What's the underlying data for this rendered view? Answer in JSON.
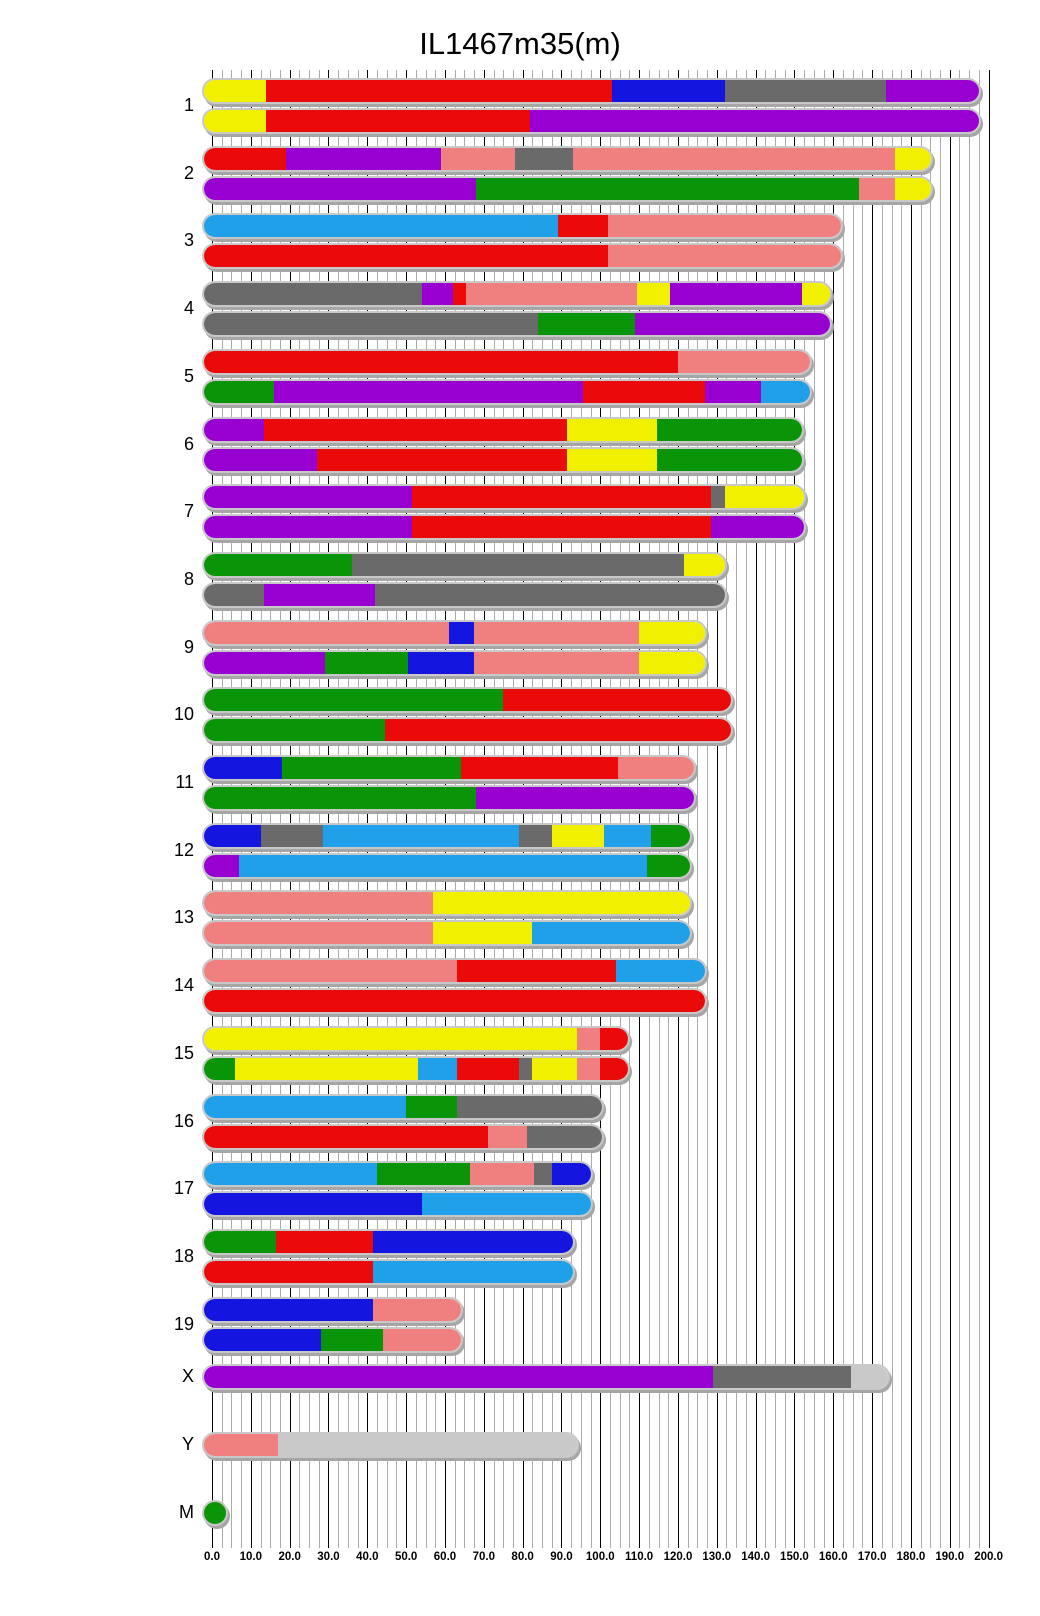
{
  "title": "IL1467m35(m)",
  "axis": {
    "min": 0,
    "max": 200,
    "minor_step": 2.5,
    "major_step": 10,
    "tick_labels": [
      "0.0",
      "10.0",
      "20.0",
      "30.0",
      "40.0",
      "50.0",
      "60.0",
      "70.0",
      "80.0",
      "90.0",
      "100.0",
      "110.0",
      "120.0",
      "130.0",
      "140.0",
      "150.0",
      "160.0",
      "170.0",
      "180.0",
      "190.0",
      "200.0"
    ]
  },
  "colors": {
    "red": "#ea0a0a",
    "yellow": "#f0f000",
    "blue": "#1515e0",
    "lightblue": "#1fa0e8",
    "purple": "#9800d2",
    "gray": "#6a6a6a",
    "lightgray": "#c9c9c9",
    "pink": "#f08080",
    "green": "#0a9408",
    "minor_gridline": "#ababab",
    "major_gridline": "#000000"
  },
  "chart_data": {
    "type": "chromosome-ideogram",
    "title": "IL1467m35(m)",
    "x_unit": "Mb",
    "x_range": [
      0,
      200
    ],
    "rows": [
      {
        "label": "1",
        "length": 195.5,
        "bars": [
          [
            [
              "yellow",
              0,
              14
            ],
            [
              "red",
              14,
              103
            ],
            [
              "blue",
              103,
              132
            ],
            [
              "gray",
              132,
              173.5
            ],
            [
              "purple",
              173.5,
              195.5
            ]
          ],
          [
            [
              "yellow",
              0,
              14
            ],
            [
              "red",
              14,
              82
            ],
            [
              "purple",
              82,
              195.5
            ]
          ]
        ]
      },
      {
        "label": "2",
        "length": 183,
        "bars": [
          [
            [
              "red",
              0,
              19
            ],
            [
              "purple",
              19,
              59
            ],
            [
              "pink",
              59,
              78
            ],
            [
              "gray",
              78,
              93
            ],
            [
              "pink",
              93,
              176
            ],
            [
              "yellow",
              176,
              183
            ]
          ],
          [
            [
              "purple",
              0,
              68
            ],
            [
              "green",
              68,
              166.5
            ],
            [
              "pink",
              166.5,
              176
            ],
            [
              "yellow",
              176,
              183
            ]
          ]
        ]
      },
      {
        "label": "3",
        "length": 160,
        "bars": [
          [
            [
              "lightblue",
              0,
              89
            ],
            [
              "red",
              89,
              102
            ],
            [
              "pink",
              102,
              160
            ]
          ],
          [
            [
              "red",
              0,
              102
            ],
            [
              "pink",
              102,
              160
            ]
          ]
        ]
      },
      {
        "label": "4",
        "length": 157,
        "bars": [
          [
            [
              "gray",
              0,
              54
            ],
            [
              "purple",
              54,
              62
            ],
            [
              "red",
              62,
              65.5
            ],
            [
              "pink",
              65.5,
              109.5
            ],
            [
              "yellow",
              109.5,
              118
            ],
            [
              "purple",
              118,
              152
            ],
            [
              "yellow",
              152,
              157
            ]
          ],
          [
            [
              "gray",
              0,
              84
            ],
            [
              "green",
              84,
              109
            ],
            [
              "purple",
              109,
              157
            ]
          ]
        ]
      },
      {
        "label": "5",
        "length": 152,
        "bars": [
          [
            [
              "red",
              0,
              120
            ],
            [
              "pink",
              120,
              152
            ]
          ],
          [
            [
              "green",
              0,
              16
            ],
            [
              "purple",
              16,
              95.5
            ],
            [
              "red",
              95.5,
              127
            ],
            [
              "purple",
              127,
              141.5
            ],
            [
              "lightblue",
              141.5,
              152
            ]
          ]
        ]
      },
      {
        "label": "6",
        "length": 150,
        "bars": [
          [
            [
              "purple",
              0,
              13.5
            ],
            [
              "red",
              13.5,
              91.5
            ],
            [
              "yellow",
              91.5,
              114.5
            ],
            [
              "green",
              114.5,
              150
            ]
          ],
          [
            [
              "purple",
              0,
              27
            ],
            [
              "red",
              27,
              91.5
            ],
            [
              "yellow",
              91.5,
              114.5
            ],
            [
              "green",
              114.5,
              150
            ]
          ]
        ]
      },
      {
        "label": "7",
        "length": 150.5,
        "bars": [
          [
            [
              "purple",
              0,
              51.5
            ],
            [
              "red",
              51.5,
              128.5
            ],
            [
              "gray",
              128.5,
              132
            ],
            [
              "yellow",
              132,
              150.5
            ]
          ],
          [
            [
              "purple",
              0,
              51.5
            ],
            [
              "red",
              51.5,
              128.5
            ],
            [
              "purple",
              128.5,
              150.5
            ]
          ]
        ]
      },
      {
        "label": "8",
        "length": 130,
        "bars": [
          [
            [
              "green",
              0,
              36
            ],
            [
              "gray",
              36,
              121.5
            ],
            [
              "yellow",
              121.5,
              130
            ]
          ],
          [
            [
              "gray",
              0,
              13.5
            ],
            [
              "purple",
              13.5,
              42
            ],
            [
              "gray",
              42,
              130
            ]
          ]
        ]
      },
      {
        "label": "9",
        "length": 125,
        "bars": [
          [
            [
              "pink",
              0,
              61
            ],
            [
              "blue",
              61,
              67.5
            ],
            [
              "pink",
              67.5,
              110
            ],
            [
              "yellow",
              110,
              125
            ]
          ],
          [
            [
              "purple",
              0,
              29
            ],
            [
              "green",
              29,
              50.5
            ],
            [
              "blue",
              50.5,
              67.5
            ],
            [
              "pink",
              67.5,
              110
            ],
            [
              "yellow",
              110,
              125
            ]
          ]
        ]
      },
      {
        "label": "10",
        "length": 131.5,
        "bars": [
          [
            [
              "green",
              0,
              75
            ],
            [
              "red",
              75,
              131.5
            ]
          ],
          [
            [
              "green",
              0,
              44.5
            ],
            [
              "red",
              44.5,
              131.5
            ]
          ]
        ]
      },
      {
        "label": "11",
        "length": 122,
        "bars": [
          [
            [
              "blue",
              0,
              18
            ],
            [
              "green",
              18,
              64
            ],
            [
              "red",
              64,
              104.5
            ],
            [
              "pink",
              104.5,
              122
            ]
          ],
          [
            [
              "green",
              0,
              68
            ],
            [
              "purple",
              68,
              122
            ]
          ]
        ]
      },
      {
        "label": "12",
        "length": 121,
        "bars": [
          [
            [
              "blue",
              0,
              12.5
            ],
            [
              "gray",
              12.5,
              28.5
            ],
            [
              "lightblue",
              28.5,
              79
            ],
            [
              "gray",
              79,
              87.5
            ],
            [
              "yellow",
              87.5,
              101
            ],
            [
              "lightblue",
              101,
              113
            ],
            [
              "green",
              113,
              121
            ]
          ],
          [
            [
              "purple",
              0,
              7
            ],
            [
              "lightblue",
              7,
              112
            ],
            [
              "green",
              112,
              121
            ]
          ]
        ]
      },
      {
        "label": "13",
        "length": 121,
        "bars": [
          [
            [
              "pink",
              0,
              57
            ],
            [
              "yellow",
              57,
              121
            ]
          ],
          [
            [
              "pink",
              0,
              57
            ],
            [
              "yellow",
              57,
              82.5
            ],
            [
              "lightblue",
              82.5,
              121
            ]
          ]
        ]
      },
      {
        "label": "14",
        "length": 125,
        "bars": [
          [
            [
              "pink",
              0,
              63
            ],
            [
              "red",
              63,
              104
            ],
            [
              "lightblue",
              104,
              125
            ]
          ],
          [
            [
              "red",
              0,
              125
            ]
          ]
        ]
      },
      {
        "label": "15",
        "length": 105,
        "bars": [
          [
            [
              "yellow",
              0,
              94
            ],
            [
              "pink",
              94,
              100
            ],
            [
              "red",
              100,
              105
            ]
          ],
          [
            [
              "green",
              0,
              6
            ],
            [
              "yellow",
              6,
              53
            ],
            [
              "lightblue",
              53,
              63
            ],
            [
              "red",
              63,
              79
            ],
            [
              "gray",
              79,
              82.5
            ],
            [
              "yellow",
              82.5,
              94
            ],
            [
              "pink",
              94,
              100
            ],
            [
              "red",
              100,
              105
            ]
          ]
        ]
      },
      {
        "label": "16",
        "length": 98.5,
        "bars": [
          [
            [
              "lightblue",
              0,
              50
            ],
            [
              "green",
              50,
              63
            ],
            [
              "gray",
              63,
              98.5
            ]
          ],
          [
            [
              "red",
              0,
              71
            ],
            [
              "pink",
              71,
              81
            ],
            [
              "gray",
              81,
              98.5
            ]
          ]
        ]
      },
      {
        "label": "17",
        "length": 95.5,
        "bars": [
          [
            [
              "lightblue",
              0,
              42.5
            ],
            [
              "green",
              42.5,
              66.5
            ],
            [
              "pink",
              66.5,
              83
            ],
            [
              "gray",
              83,
              87.5
            ],
            [
              "blue",
              87.5,
              95.5
            ]
          ],
          [
            [
              "blue",
              0,
              54
            ],
            [
              "lightblue",
              54,
              95.5
            ]
          ]
        ]
      },
      {
        "label": "18",
        "length": 91,
        "bars": [
          [
            [
              "green",
              0,
              16.5
            ],
            [
              "red",
              16.5,
              41.5
            ],
            [
              "blue",
              41.5,
              91
            ]
          ],
          [
            [
              "red",
              0,
              41.5
            ],
            [
              "lightblue",
              41.5,
              91
            ]
          ]
        ]
      },
      {
        "label": "19",
        "length": 62,
        "bars": [
          [
            [
              "blue",
              0,
              41.5
            ],
            [
              "pink",
              41.5,
              62
            ]
          ],
          [
            [
              "blue",
              0,
              28
            ],
            [
              "green",
              28,
              44
            ],
            [
              "pink",
              44,
              62
            ]
          ]
        ]
      },
      {
        "label": "X",
        "length": 172,
        "bars": [
          [
            [
              "purple",
              0,
              129
            ],
            [
              "gray",
              129,
              164.5
            ],
            [
              "lightgray",
              164.5,
              172
            ]
          ]
        ]
      },
      {
        "label": "Y",
        "length": 92,
        "bars": [
          [
            [
              "pink",
              0,
              17
            ],
            [
              "lightgray",
              17,
              92
            ]
          ]
        ]
      },
      {
        "label": "M",
        "length": 5,
        "dot": true,
        "bars": [
          [
            [
              "green",
              0,
              5
            ]
          ]
        ]
      }
    ]
  }
}
